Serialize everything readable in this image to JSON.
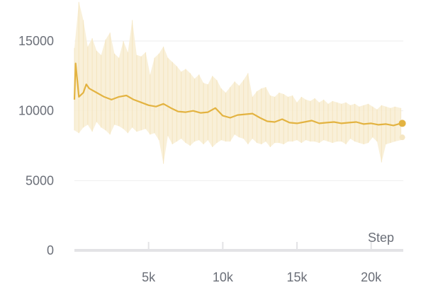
{
  "chart_data": {
    "type": "line",
    "xlabel": "Step",
    "ylabel": "",
    "xlim": [
      0,
      22100
    ],
    "ylim": [
      0,
      17500
    ],
    "x_ticks": [
      {
        "value": 5000,
        "label": "5k"
      },
      {
        "value": 10000,
        "label": "10k"
      },
      {
        "value": 15000,
        "label": "15k"
      },
      {
        "value": 20000,
        "label": "20k"
      }
    ],
    "y_ticks": [
      {
        "value": 0,
        "label": "0"
      },
      {
        "value": 5000,
        "label": "5000"
      },
      {
        "value": 10000,
        "label": "10000"
      },
      {
        "value": 15000,
        "label": "15000"
      }
    ],
    "grid": "horizontal",
    "colors": {
      "smoothed": "#e3b341",
      "raw": "#f8edd2",
      "axis": "#e3e3e6",
      "grid": "#eeeeee"
    },
    "series": [
      {
        "role": "smoothed",
        "x": [
          0,
          80,
          300,
          600,
          800,
          1000,
          1500,
          2000,
          2500,
          3000,
          3500,
          4000,
          4500,
          5000,
          5500,
          6000,
          6500,
          7000,
          7500,
          8000,
          8500,
          9000,
          9500,
          10000,
          10500,
          11000,
          11500,
          12000,
          12500,
          13000,
          13500,
          14000,
          14500,
          15000,
          15500,
          16000,
          16500,
          17000,
          17500,
          18000,
          18500,
          19000,
          19500,
          20000,
          20500,
          21000,
          21500,
          22000
        ],
        "y": [
          10800,
          13400,
          11000,
          11300,
          11900,
          11600,
          11300,
          11000,
          10800,
          11000,
          11100,
          10800,
          10600,
          10400,
          10300,
          10500,
          10200,
          9950,
          9900,
          10000,
          9850,
          9900,
          10200,
          9650,
          9500,
          9700,
          9750,
          9800,
          9500,
          9250,
          9200,
          9400,
          9150,
          9100,
          9200,
          9300,
          9100,
          9150,
          9200,
          9100,
          9150,
          9200,
          9050,
          9100,
          9000,
          9050,
          8950,
          9100
        ]
      },
      {
        "role": "raw",
        "x": [
          0,
          300,
          600,
          900,
          1200,
          1500,
          1800,
          2100,
          2400,
          2700,
          3000,
          3300,
          3600,
          3900,
          4200,
          4500,
          4800,
          5100,
          5400,
          5700,
          6000,
          6300,
          6600,
          6900,
          7200,
          7500,
          7800,
          8100,
          8400,
          8700,
          9000,
          9300,
          9600,
          9900,
          10200,
          10500,
          10800,
          11100,
          11400,
          11700,
          12000,
          12300,
          12600,
          12900,
          13200,
          13500,
          13800,
          14100,
          14400,
          14700,
          15000,
          15300,
          15600,
          15900,
          16200,
          16500,
          16800,
          17100,
          17400,
          17700,
          18000,
          18300,
          18600,
          18900,
          19200,
          19500,
          19800,
          20100,
          20400,
          20700,
          21000,
          21300,
          21600,
          22000
        ],
        "y_low": [
          8600,
          8400,
          8800,
          9000,
          8500,
          9200,
          8800,
          8600,
          8300,
          9000,
          8900,
          8700,
          8400,
          8800,
          8500,
          8600,
          8700,
          8300,
          8400,
          7900,
          6200,
          8200,
          7600,
          7800,
          8000,
          7700,
          7500,
          7800,
          7900,
          7600,
          7900,
          7400,
          7700,
          7900,
          7800,
          7800,
          8300,
          8100,
          8000,
          7600,
          8000,
          7700,
          7600,
          7800,
          7400,
          7700,
          7700,
          7600,
          7800,
          7800,
          7900,
          7700,
          7900,
          7800,
          7800,
          7700,
          7900,
          7800,
          7700,
          7800,
          7800,
          7600,
          8000,
          7800,
          7700,
          7600,
          7700,
          8100,
          7800,
          6300,
          7600,
          7700,
          7800,
          7900
        ],
        "y_high": [
          14500,
          17800,
          16500,
          14600,
          15200,
          14300,
          14000,
          15100,
          15600,
          14100,
          13800,
          15000,
          14200,
          16500,
          14000,
          13900,
          14200,
          12600,
          13800,
          14100,
          14600,
          13800,
          13500,
          13200,
          12800,
          13000,
          12700,
          12300,
          12600,
          12000,
          11900,
          12500,
          12200,
          11600,
          11300,
          11700,
          12100,
          11800,
          12200,
          12700,
          11000,
          11400,
          11600,
          11700,
          11100,
          11000,
          11300,
          11200,
          11000,
          11100,
          10600,
          11000,
          10800,
          10700,
          10900,
          10600,
          10800,
          10500,
          10700,
          10600,
          10500,
          10600,
          10400,
          10500,
          10300,
          10400,
          10500,
          10300,
          10100,
          10400,
          10300,
          10200,
          10300,
          10200
        ]
      }
    ],
    "last_point": {
      "x": 22100,
      "y": 9100
    },
    "last_raw_point": {
      "x": 22100,
      "y": 8100
    }
  }
}
